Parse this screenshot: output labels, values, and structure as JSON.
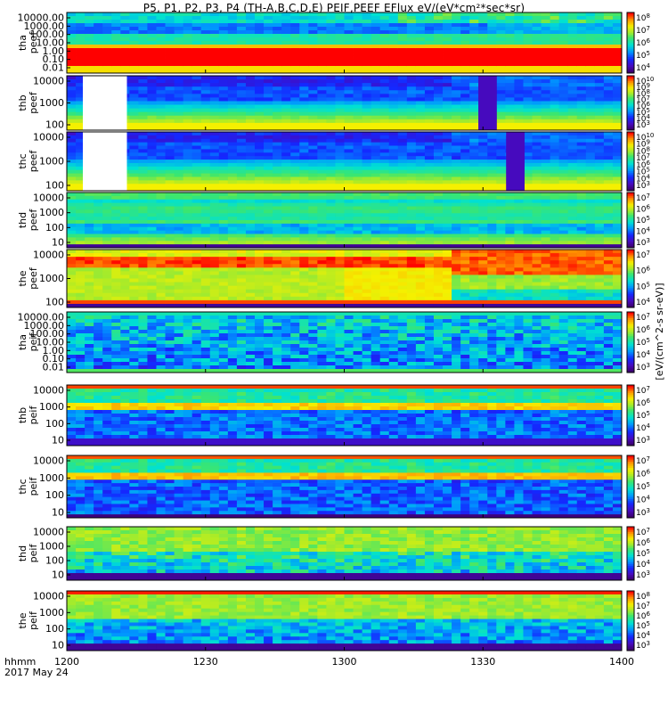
{
  "title": "P5, P1, P2, P3, P4 (TH-A,B,C,D,E) PEIF,PEEF EFlux eV/(eV*cm²*sec*sr)",
  "time_axis": {
    "corner_label_1": "hhmm",
    "corner_label_2": "2017 May 24",
    "ticks": [
      "1200",
      "1230",
      "1300",
      "1330",
      "1400"
    ]
  },
  "colorbar_unit_text": "[eV/(cm^2-s sr-eV)]",
  "chart_data": [
    {
      "type": "heatmap",
      "panel_id": "tha-peef",
      "ylabel_1": "tha",
      "ylabel_2": "peef",
      "yticks": [
        "10000.00",
        "1000.00",
        "100.00",
        "10.00",
        "1.00",
        "0.10",
        "0.01"
      ],
      "cbar_ticks": [
        "10^8",
        "10^7",
        "10^6",
        "10^5",
        "10^4"
      ],
      "character": "peef_a"
    },
    {
      "type": "heatmap",
      "panel_id": "thb-peef",
      "ylabel_1": "thb",
      "ylabel_2": "peef",
      "yticks": [
        "10000",
        "1000",
        "100"
      ],
      "cbar_ticks": [
        "10^10",
        "10^9",
        "10^8",
        "10^7",
        "10^6",
        "10^5",
        "10^4",
        "10^3"
      ],
      "character": "peef_bc",
      "gaps": [
        [
          1200,
          1213
        ],
        [
          1329,
          1333
        ]
      ]
    },
    {
      "type": "heatmap",
      "panel_id": "thc-peef",
      "ylabel_1": "thc",
      "ylabel_2": "peef",
      "yticks": [
        "10000",
        "1000",
        "100"
      ],
      "cbar_ticks": [
        "10^10",
        "10^9",
        "10^8",
        "10^7",
        "10^6",
        "10^5",
        "10^4",
        "10^3"
      ],
      "character": "peef_bc",
      "gaps": [
        [
          1200,
          1213
        ],
        [
          1335,
          1339
        ]
      ]
    },
    {
      "type": "heatmap",
      "panel_id": "thd-peef",
      "ylabel_1": "thd",
      "ylabel_2": "peef",
      "yticks": [
        "10000",
        "1000",
        "100",
        "10"
      ],
      "cbar_ticks": [
        "10^7",
        "10^6",
        "10^5",
        "10^4",
        "10^3"
      ],
      "character": "peef_d"
    },
    {
      "type": "heatmap",
      "panel_id": "the-peef",
      "ylabel_1": "the",
      "ylabel_2": "peef",
      "yticks": [
        "10000",
        "1000",
        "100"
      ],
      "cbar_ticks": [
        "10^7",
        "10^6",
        "10^5",
        "10^4"
      ],
      "character": "peef_e"
    },
    {
      "type": "heatmap",
      "panel_id": "tha-peif",
      "ylabel_1": "tha",
      "ylabel_2": "peif",
      "yticks": [
        "10000.00",
        "1000.00",
        "100.00",
        "10.00",
        "1.00",
        "0.10",
        "0.01"
      ],
      "cbar_ticks": [
        "10^7",
        "10^6",
        "10^5",
        "10^4",
        "10^3"
      ],
      "character": "peif_a"
    },
    {
      "type": "heatmap",
      "panel_id": "thb-peif",
      "ylabel_1": "thb",
      "ylabel_2": "peif",
      "yticks": [
        "10000",
        "1000",
        "100",
        "10"
      ],
      "cbar_ticks": [
        "10^7",
        "10^6",
        "10^5",
        "10^4",
        "10^3"
      ],
      "character": "peif_b"
    },
    {
      "type": "heatmap",
      "panel_id": "thc-peif",
      "ylabel_1": "thc",
      "ylabel_2": "peif",
      "yticks": [
        "10000",
        "1000",
        "100",
        "10"
      ],
      "cbar_ticks": [
        "10^7",
        "10^6",
        "10^5",
        "10^4",
        "10^3"
      ],
      "character": "peif_c"
    },
    {
      "type": "heatmap",
      "panel_id": "thd-peif",
      "ylabel_1": "thd",
      "ylabel_2": "peif",
      "yticks": [
        "10000",
        "1000",
        "100",
        "10"
      ],
      "cbar_ticks": [
        "10^7",
        "10^6",
        "10^5",
        "10^4",
        "10^3"
      ],
      "character": "peif_d"
    },
    {
      "type": "heatmap",
      "panel_id": "the-peif",
      "ylabel_1": "the",
      "ylabel_2": "peif",
      "yticks": [
        "10000",
        "1000",
        "100",
        "10"
      ],
      "cbar_ticks": [
        "10^8",
        "10^7",
        "10^6",
        "10^5",
        "10^4",
        "10^3"
      ],
      "character": "peif_e"
    }
  ]
}
